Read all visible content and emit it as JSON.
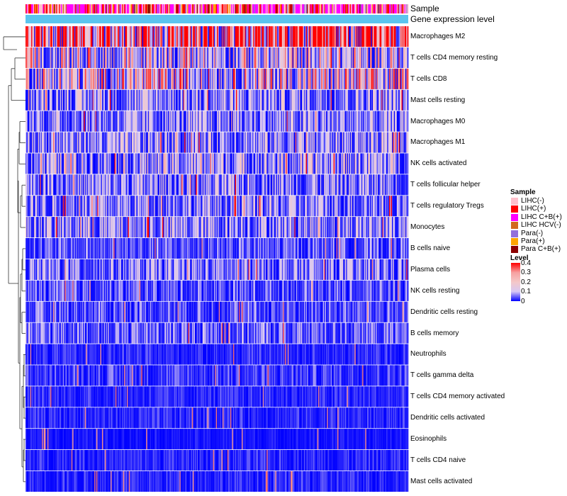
{
  "chart_data": {
    "type": "heatmap",
    "title": "",
    "annotation_rows": [
      "Sample",
      "Gene expression level"
    ],
    "rows": [
      {
        "name": "Macrophages M2",
        "mean": 0.34
      },
      {
        "name": "T cells CD4 memory resting",
        "mean": 0.13
      },
      {
        "name": "T cells CD8",
        "mean": 0.15
      },
      {
        "name": "Mast cells resting",
        "mean": 0.08
      },
      {
        "name": "Macrophages M0",
        "mean": 0.07
      },
      {
        "name": "Macrophages M1",
        "mean": 0.08
      },
      {
        "name": "NK cells activated",
        "mean": 0.09
      },
      {
        "name": "T cells follicular helper",
        "mean": 0.07
      },
      {
        "name": "T cells regulatory  Tregs",
        "mean": 0.07
      },
      {
        "name": "Monocytes",
        "mean": 0.08
      },
      {
        "name": "B cells naive",
        "mean": 0.04
      },
      {
        "name": "Plasma cells",
        "mean": 0.06
      },
      {
        "name": "NK cells resting",
        "mean": 0.04
      },
      {
        "name": "Dendritic cells resting",
        "mean": 0.04
      },
      {
        "name": "B cells memory",
        "mean": 0.05
      },
      {
        "name": "Neutrophils",
        "mean": 0.02
      },
      {
        "name": "T cells gamma delta",
        "mean": 0.03
      },
      {
        "name": "T cells CD4 memory activated",
        "mean": 0.02
      },
      {
        "name": "Dendritic cells activated",
        "mean": 0.02
      },
      {
        "name": "Eosinophils",
        "mean": 0.01
      },
      {
        "name": "T cells CD4 naive",
        "mean": 0.02
      },
      {
        "name": "Mast cells activated",
        "mean": 0.02
      }
    ],
    "n_columns": 400,
    "color_range": [
      0,
      0.4
    ],
    "color_stops": [
      {
        "value": 0,
        "color": "#0000ff"
      },
      {
        "value": 0.1,
        "color": "#d8c8f4"
      },
      {
        "value": 0.2,
        "color": "#f4c8c8"
      },
      {
        "value": 0.4,
        "color": "#ff0000"
      }
    ],
    "gene_expression_color": "#5bc4ee"
  },
  "legend": {
    "sample_title": "Sample",
    "sample_groups": [
      {
        "label": "LIHC(-)",
        "color": "#ffc0cb"
      },
      {
        "label": "LIHC(+)",
        "color": "#ff0000"
      },
      {
        "label": "LIHC C+B(+)",
        "color": "#ff00ff"
      },
      {
        "label": "LIHC HCV(-)",
        "color": "#d2691e"
      },
      {
        "label": "Para(-)",
        "color": "#9370db"
      },
      {
        "label": "Para(+)",
        "color": "#ffa500"
      },
      {
        "label": "Para C+B(+)",
        "color": "#8b0000"
      }
    ],
    "sample_weights": [
      22,
      22,
      32,
      4,
      6,
      3,
      3
    ],
    "level_title": "Level",
    "level_ticks": [
      "0.4",
      "0.3",
      "0.2",
      "0.1",
      "0"
    ]
  }
}
